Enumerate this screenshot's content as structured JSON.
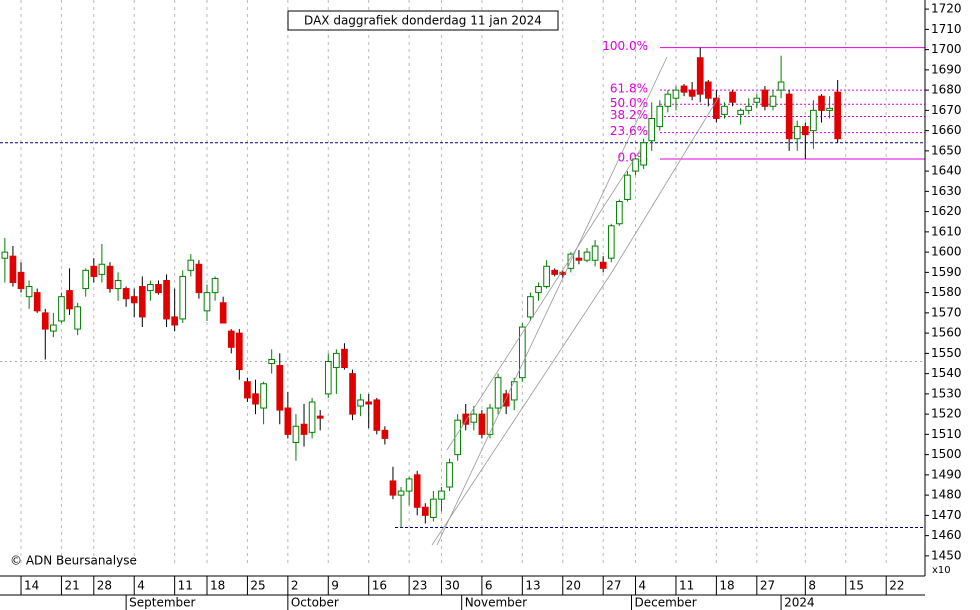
{
  "chart_data": {
    "type": "candlestick",
    "title": "DAX daggrafiek donderdag 11 jan 2024",
    "copyright": "© ADN Beursanalyse",
    "multiplier": "x10",
    "up_color": "#008000",
    "down_color": "#e00000",
    "ylim": [
      1445,
      1724.5
    ],
    "yticks": [
      1450,
      1460,
      1470,
      1480,
      1490,
      1500,
      1510,
      1520,
      1530,
      1540,
      1550,
      1560,
      1570,
      1580,
      1590,
      1600,
      1610,
      1620,
      1630,
      1640,
      1650,
      1660,
      1670,
      1680,
      1690,
      1700,
      1710,
      1720
    ],
    "xlim": [
      -0.6,
      113.8
    ],
    "xticks": [
      {
        "value": 2,
        "label": "14"
      },
      {
        "value": 7,
        "label": "21"
      },
      {
        "value": 11,
        "label": "28"
      },
      {
        "value": 16,
        "label": "4"
      },
      {
        "value": 21,
        "label": "11"
      },
      {
        "value": 25,
        "label": "18"
      },
      {
        "value": 30,
        "label": "25"
      },
      {
        "value": 35,
        "label": "2"
      },
      {
        "value": 40,
        "label": "9"
      },
      {
        "value": 45,
        "label": "16"
      },
      {
        "value": 50,
        "label": "23"
      },
      {
        "value": 54,
        "label": "30"
      },
      {
        "value": 59,
        "label": "6"
      },
      {
        "value": 64,
        "label": "13"
      },
      {
        "value": 69,
        "label": "20"
      },
      {
        "value": 74,
        "label": "27"
      },
      {
        "value": 78,
        "label": "4"
      },
      {
        "value": 83,
        "label": "11"
      },
      {
        "value": 88,
        "label": "18"
      },
      {
        "value": 93,
        "label": "27"
      },
      {
        "value": 99,
        "label": "8"
      },
      {
        "value": 104,
        "label": "15"
      },
      {
        "value": 109,
        "label": "22"
      }
    ],
    "months": [
      {
        "value": 15,
        "label": "September"
      },
      {
        "value": 35,
        "label": "October"
      },
      {
        "value": 56.5,
        "label": "November"
      },
      {
        "value": 77.5,
        "label": "December"
      },
      {
        "value": 96,
        "label": "2024"
      }
    ],
    "open": [
      1597,
      1598,
      1590,
      1578,
      1580,
      1570,
      1561,
      1566,
      1581,
      1562,
      1582,
      1593,
      1589,
      1593,
      1582,
      1582,
      1578,
      1583,
      1581,
      1584,
      1586,
      1568,
      1567,
      1591,
      1594,
      1571,
      1580,
      1575,
      1561,
      1560,
      1536,
      1530,
      1523,
      1545,
      1544,
      1523,
      1506,
      1515,
      1511,
      1519,
      1530,
      1543,
      1552,
      1540,
      1524,
      1526,
      1527,
      1512,
      1487,
      1480,
      1482,
      1490,
      1474,
      1469,
      1478,
      1484,
      1500,
      1520,
      1516,
      1520,
      1510,
      1523,
      1530,
      1527,
      1538,
      1568,
      1580,
      1583,
      1591,
      1590,
      1592,
      1597,
      1596,
      1596,
      1595,
      1597,
      1614,
      1626,
      1640,
      1643,
      1655,
      1662,
      1672,
      1676,
      1682,
      1680,
      1696,
      1684,
      1676,
      1668,
      1679,
      1668,
      1670,
      1674,
      1680,
      1672,
      1680,
      1678,
      1656,
      1662,
      1660,
      1677,
      1670,
      1679
    ],
    "high": [
      1607,
      1603,
      1595,
      1586,
      1582,
      1572,
      1570,
      1580,
      1592,
      1575,
      1592,
      1597,
      1604,
      1595,
      1590,
      1583,
      1582,
      1588,
      1586,
      1586,
      1589,
      1582,
      1591,
      1599,
      1596,
      1584,
      1588,
      1578,
      1562,
      1562,
      1538,
      1537,
      1536,
      1552,
      1550,
      1531,
      1520,
      1525,
      1528,
      1522,
      1550,
      1552,
      1555,
      1542,
      1530,
      1530,
      1528,
      1514,
      1494,
      1484,
      1489,
      1492,
      1476,
      1482,
      1484,
      1498,
      1520,
      1525,
      1524,
      1522,
      1525,
      1540,
      1532,
      1538,
      1565,
      1580,
      1585,
      1596,
      1592,
      1591,
      1600,
      1601,
      1602,
      1606,
      1598,
      1614,
      1626,
      1640,
      1648,
      1656,
      1674,
      1675,
      1680,
      1682,
      1683,
      1684,
      1701,
      1685,
      1680,
      1674,
      1680,
      1671,
      1676,
      1678,
      1682,
      1680,
      1697,
      1680,
      1665,
      1664,
      1675,
      1678,
      1677,
      1685
    ],
    "low": [
      1585,
      1583,
      1580,
      1572,
      1570,
      1547,
      1558,
      1565,
      1569,
      1559,
      1578,
      1585,
      1585,
      1580,
      1576,
      1573,
      1568,
      1563,
      1576,
      1579,
      1563,
      1561,
      1565,
      1588,
      1577,
      1566,
      1576,
      1565,
      1550,
      1537,
      1526,
      1520,
      1515,
      1540,
      1515,
      1508,
      1497,
      1504,
      1508,
      1512,
      1528,
      1530,
      1542,
      1517,
      1519,
      1513,
      1510,
      1505,
      1478,
      1464,
      1475,
      1470,
      1466,
      1467,
      1472,
      1482,
      1497,
      1512,
      1512,
      1508,
      1508,
      1520,
      1520,
      1522,
      1536,
      1566,
      1576,
      1582,
      1588,
      1587,
      1590,
      1594,
      1595,
      1593,
      1590,
      1595,
      1613,
      1625,
      1638,
      1641,
      1650,
      1660,
      1669,
      1670,
      1677,
      1675,
      1674,
      1672,
      1664,
      1666,
      1672,
      1663,
      1668,
      1671,
      1670,
      1670,
      1676,
      1650,
      1650,
      1646,
      1651,
      1664,
      1666,
      1654
    ],
    "close": [
      1600,
      1585,
      1582,
      1583,
      1571,
      1562,
      1564,
      1578,
      1572,
      1573,
      1591,
      1588,
      1594,
      1582,
      1586,
      1577,
      1575,
      1568,
      1584,
      1580,
      1567,
      1564,
      1588,
      1596,
      1580,
      1580,
      1587,
      1565,
      1553,
      1542,
      1528,
      1525,
      1535,
      1547,
      1522,
      1510,
      1514,
      1510,
      1526,
      1518,
      1546,
      1550,
      1543,
      1520,
      1527,
      1525,
      1512,
      1508,
      1480,
      1482,
      1488,
      1474,
      1470,
      1478,
      1482,
      1496,
      1517,
      1515,
      1520,
      1510,
      1523,
      1538,
      1524,
      1536,
      1563,
      1578,
      1583,
      1593,
      1589,
      1589,
      1599,
      1596,
      1600,
      1603,
      1592,
      1613,
      1625,
      1638,
      1646,
      1654,
      1666,
      1672,
      1678,
      1680,
      1679,
      1677,
      1678,
      1676,
      1666,
      1672,
      1674,
      1670,
      1672,
      1676,
      1672,
      1677,
      1684,
      1656,
      1662,
      1658,
      1670,
      1670,
      1671,
      1656
    ],
    "fib_color": "#e000e0",
    "fibonacci": [
      {
        "label": "100.0%",
        "value": 1701
      },
      {
        "label": "61.8%",
        "value": 1680
      },
      {
        "label": "50.0%",
        "value": 1673
      },
      {
        "label": "38.2%",
        "value": 1667
      },
      {
        "label": "23.6%",
        "value": 1659
      },
      {
        "label": "0.0%",
        "value": 1646
      }
    ],
    "hline_color": "#000080",
    "hlines": [
      1654,
      1464
    ],
    "grid_level": 1546
  }
}
